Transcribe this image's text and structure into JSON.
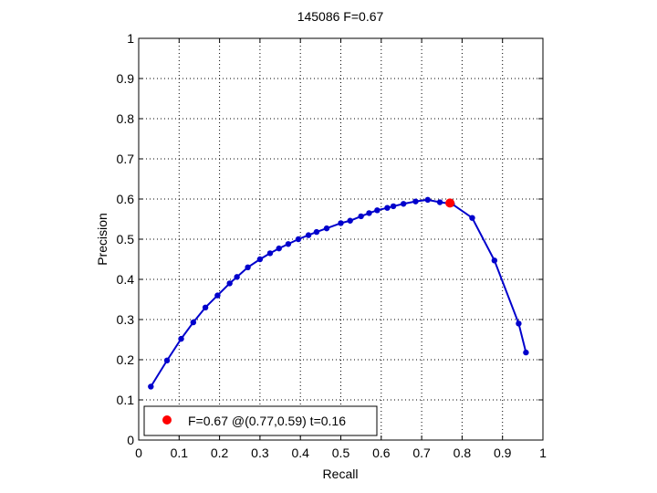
{
  "chart_data": {
    "type": "line",
    "title": "145086 F=0.67",
    "xlabel": "Recall",
    "ylabel": "Precision",
    "xlim": [
      0,
      1
    ],
    "ylim": [
      0,
      1
    ],
    "grid": true,
    "x_ticks": [
      "0",
      "0.1",
      "0.2",
      "0.3",
      "0.4",
      "0.5",
      "0.6",
      "0.7",
      "0.8",
      "0.9",
      "1"
    ],
    "y_ticks": [
      "0",
      "0.1",
      "0.2",
      "0.3",
      "0.4",
      "0.5",
      "0.6",
      "0.7",
      "0.8",
      "0.9",
      "1"
    ],
    "series": [
      {
        "color": "#0000cc",
        "points": [
          [
            0.03,
            0.133
          ],
          [
            0.07,
            0.198
          ],
          [
            0.105,
            0.252
          ],
          [
            0.135,
            0.293
          ],
          [
            0.165,
            0.33
          ],
          [
            0.195,
            0.36
          ],
          [
            0.225,
            0.39
          ],
          [
            0.243,
            0.406
          ],
          [
            0.27,
            0.43
          ],
          [
            0.3,
            0.45
          ],
          [
            0.325,
            0.465
          ],
          [
            0.347,
            0.477
          ],
          [
            0.37,
            0.488
          ],
          [
            0.395,
            0.5
          ],
          [
            0.42,
            0.51
          ],
          [
            0.44,
            0.518
          ],
          [
            0.465,
            0.527
          ],
          [
            0.5,
            0.54
          ],
          [
            0.523,
            0.546
          ],
          [
            0.55,
            0.557
          ],
          [
            0.57,
            0.565
          ],
          [
            0.59,
            0.572
          ],
          [
            0.615,
            0.578
          ],
          [
            0.63,
            0.582
          ],
          [
            0.655,
            0.588
          ],
          [
            0.685,
            0.594
          ],
          [
            0.715,
            0.598
          ],
          [
            0.745,
            0.592
          ],
          [
            0.775,
            0.588
          ],
          [
            0.825,
            0.553
          ],
          [
            0.88,
            0.447
          ],
          [
            0.94,
            0.29
          ],
          [
            0.958,
            0.218
          ]
        ]
      }
    ],
    "highlight": {
      "x": 0.77,
      "y": 0.59,
      "color": "#ff0000"
    },
    "legend": {
      "position": "bottom-left",
      "label": "F=0.67 @(0.77,0.59) t=0.16",
      "marker_color": "#ff0000"
    }
  }
}
